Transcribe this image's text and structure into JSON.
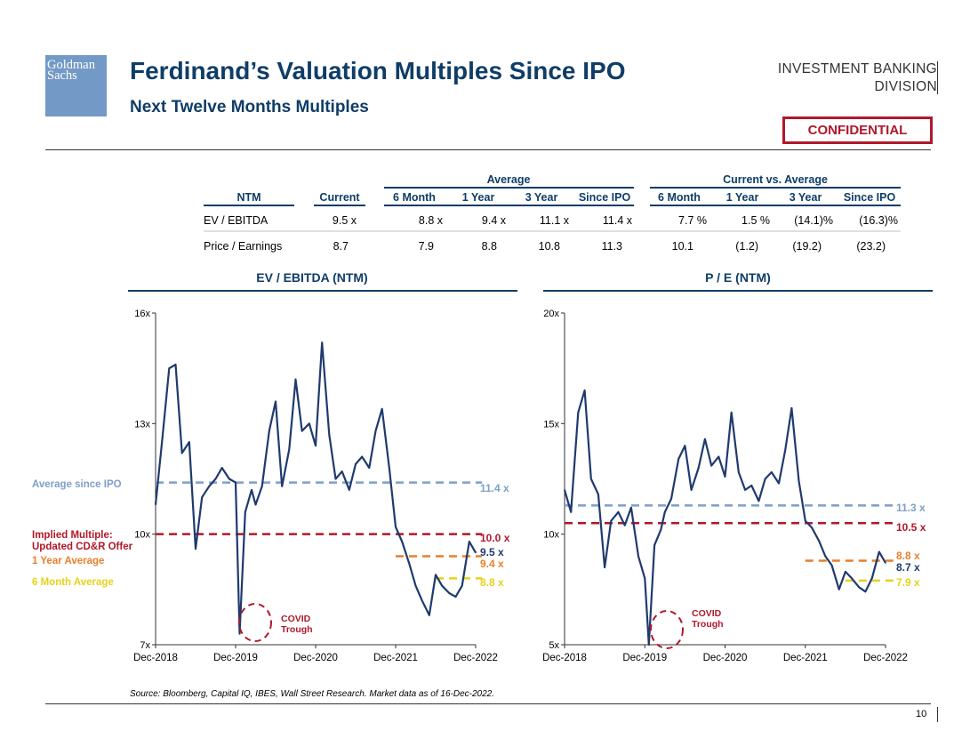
{
  "header": {
    "logo_line1": "Goldman",
    "logo_line2": "Sachs",
    "title": "Ferdinand’s Valuation Multiples Since IPO",
    "subtitle": "Next Twelve Months Multiples",
    "division_line1": "INVESTMENT BANKING",
    "division_line2": "DIVISION",
    "confidential": "CONFIDENTIAL"
  },
  "table": {
    "group_average": "Average",
    "group_current_vs_average": "Current vs. Average",
    "columns": [
      "NTM",
      "Current",
      "6 Month",
      "1 Year",
      "3 Year",
      "Since IPO",
      "6 Month",
      "1 Year",
      "3 Year",
      "Since IPO"
    ],
    "rows": [
      [
        "EV / EBITDA",
        "9.5 x",
        "8.8 x",
        "9.4 x",
        "11.1 x",
        "11.4 x",
        "7.7 %",
        "1.5 %",
        "(14.1)%",
        "(16.3)%"
      ],
      [
        "Price / Earnings",
        "8.7",
        "7.9",
        "8.8",
        "10.8",
        "11.3",
        "10.1",
        "(1.2)",
        "(19.2)",
        "(23.2)"
      ]
    ]
  },
  "legend": {
    "avg_since_ipo": "Average since IPO",
    "implied_line1": "Implied Multiple:",
    "implied_line2": "Updated CD&R Offer",
    "one_year": "1 Year Average",
    "six_month": "6 Month Average"
  },
  "covid_label_line1": "COVID",
  "covid_label_line2": "Trough",
  "source": "Source: Bloomberg, Capital IQ, IBES,  Wall Street Research. Market data as of 16-Dec-2022.",
  "page_number": "10",
  "colors": {
    "navy": "#1f3a6e",
    "title_blue": "#0f3d67",
    "since_ipo": "#7f9fc6",
    "implied": "#b0182a",
    "one_year": "#e87f2c",
    "six_month": "#e6d21a"
  },
  "chart_data": [
    {
      "type": "line",
      "title": "EV / EBITDA (NTM)",
      "x_ticks": [
        "Dec-2018",
        "Dec-2019",
        "Dec-2020",
        "Dec-2021",
        "Dec-2022"
      ],
      "y_ticks": [
        "7x",
        "10x",
        "13x",
        "16x"
      ],
      "ylim": [
        7,
        16
      ],
      "series": [
        {
          "name": "EV / EBITDA (NTM)",
          "x": [
            0,
            0.08,
            0.17,
            0.25,
            0.33,
            0.42,
            0.5,
            0.58,
            0.67,
            0.75,
            0.83,
            0.92,
            1.0,
            1.05,
            1.12,
            1.2,
            1.25,
            1.33,
            1.42,
            1.5,
            1.58,
            1.67,
            1.75,
            1.83,
            1.92,
            2.0,
            2.08,
            2.17,
            2.25,
            2.33,
            2.42,
            2.5,
            2.58,
            2.67,
            2.75,
            2.83,
            2.92,
            3.0,
            3.08,
            3.17,
            3.25,
            3.33,
            3.42,
            3.5,
            3.58,
            3.67,
            3.75,
            3.83,
            3.92,
            4.0
          ],
          "values": [
            10.8,
            12.5,
            14.5,
            14.6,
            12.2,
            12.5,
            9.6,
            11.0,
            11.3,
            11.5,
            11.8,
            11.5,
            11.4,
            7.3,
            10.6,
            11.2,
            10.8,
            11.3,
            12.8,
            13.6,
            11.3,
            12.3,
            14.2,
            12.8,
            13.0,
            12.4,
            15.2,
            12.7,
            11.5,
            11.7,
            11.2,
            11.9,
            12.1,
            11.8,
            12.8,
            13.4,
            11.8,
            10.2,
            9.8,
            9.2,
            8.6,
            8.2,
            7.8,
            8.9,
            8.6,
            8.4,
            8.3,
            8.6,
            9.8,
            9.5
          ]
        }
      ],
      "reference_lines": [
        {
          "name": "Average since IPO",
          "value": 11.4,
          "label": "11.4 x"
        },
        {
          "name": "Implied Multiple: Updated CD&R Offer",
          "value": 10.0,
          "label": "10.0 x"
        },
        {
          "name": "Current",
          "value": 9.5,
          "label": "9.5 x"
        },
        {
          "name": "1 Year Average",
          "value": 9.4,
          "label": "9.4 x"
        },
        {
          "name": "6 Month Average",
          "value": 8.8,
          "label": "8.8 x"
        }
      ],
      "annotation": "COVID Trough"
    },
    {
      "type": "line",
      "title": "P / E (NTM)",
      "x_ticks": [
        "Dec-2018",
        "Dec-2019",
        "Dec-2020",
        "Dec-2021",
        "Dec-2022"
      ],
      "y_ticks": [
        "5x",
        "10x",
        "15x",
        "20x"
      ],
      "ylim": [
        5,
        20
      ],
      "series": [
        {
          "name": "P / E (NTM)",
          "x": [
            0,
            0.08,
            0.17,
            0.25,
            0.33,
            0.42,
            0.5,
            0.58,
            0.67,
            0.75,
            0.83,
            0.92,
            1.0,
            1.05,
            1.12,
            1.2,
            1.25,
            1.33,
            1.42,
            1.5,
            1.58,
            1.67,
            1.75,
            1.83,
            1.92,
            2.0,
            2.08,
            2.17,
            2.25,
            2.33,
            2.42,
            2.5,
            2.58,
            2.67,
            2.75,
            2.83,
            2.92,
            3.0,
            3.08,
            3.17,
            3.25,
            3.33,
            3.42,
            3.5,
            3.58,
            3.67,
            3.75,
            3.83,
            3.92,
            4.0
          ],
          "values": [
            12.0,
            11.0,
            15.5,
            16.5,
            12.5,
            11.8,
            8.5,
            10.6,
            11.0,
            10.4,
            11.2,
            9.0,
            8.0,
            5.0,
            9.5,
            10.2,
            11.0,
            11.6,
            13.4,
            14.0,
            12.0,
            13.0,
            14.3,
            13.1,
            13.5,
            12.6,
            15.5,
            12.8,
            12.0,
            12.2,
            11.5,
            12.5,
            12.8,
            12.3,
            13.8,
            15.7,
            12.4,
            10.6,
            10.3,
            9.7,
            9.0,
            8.6,
            7.5,
            8.3,
            8.0,
            7.6,
            7.4,
            8.0,
            9.2,
            8.7
          ]
        }
      ],
      "reference_lines": [
        {
          "name": "Average since IPO",
          "value": 11.3,
          "label": "11.3 x"
        },
        {
          "name": "Implied Multiple: Updated CD&R Offer",
          "value": 10.5,
          "label": "10.5 x"
        },
        {
          "name": "1 Year Average",
          "value": 8.8,
          "label": "8.8 x"
        },
        {
          "name": "Current",
          "value": 8.7,
          "label": "8.7 x"
        },
        {
          "name": "6 Month Average",
          "value": 7.9,
          "label": "7.9 x"
        }
      ],
      "annotation": "COVID Trough"
    }
  ]
}
